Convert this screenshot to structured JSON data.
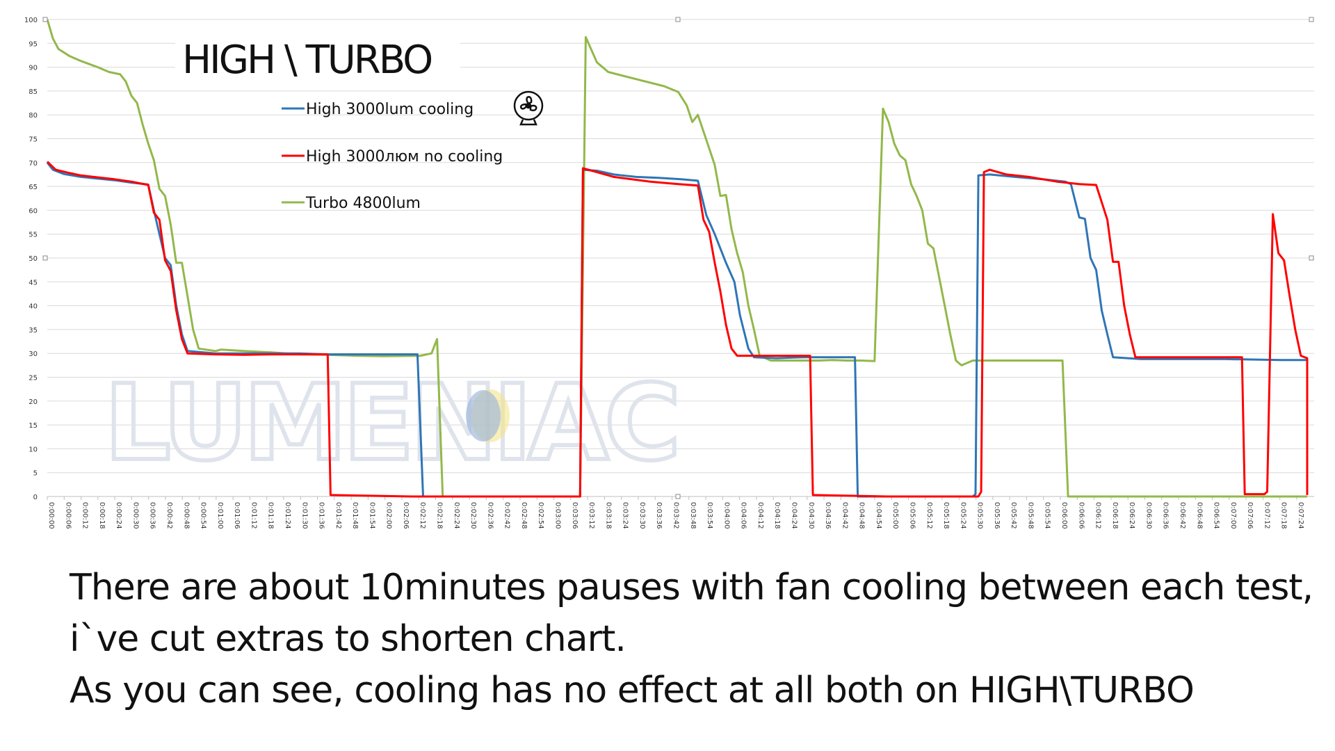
{
  "chart_data": {
    "type": "line",
    "title": "HIGH \\ TURBO",
    "ylim": [
      0,
      100
    ],
    "y_ticks": [
      0,
      5,
      10,
      15,
      20,
      25,
      30,
      35,
      40,
      45,
      50,
      55,
      60,
      65,
      70,
      75,
      80,
      85,
      90,
      95,
      100
    ],
    "x_tick_labels": [
      "0:00:00",
      "0:00:06",
      "0:00:12",
      "0:00:18",
      "0:00:24",
      "0:00:30",
      "0:00:36",
      "0:00:42",
      "0:00:48",
      "0:00:54",
      "0:01:00",
      "0:01:06",
      "0:01:12",
      "0:01:18",
      "0:01:24",
      "0:01:30",
      "0:01:36",
      "0:01:42",
      "0:01:48",
      "0:01:54",
      "0:02:00",
      "0:02:06",
      "0:02:12",
      "0:02:18",
      "0:02:24",
      "0:02:30",
      "0:02:36",
      "0:02:42",
      "0:02:48",
      "0:02:54",
      "0:03:00",
      "0:03:06",
      "0:03:12",
      "0:03:18",
      "0:03:24",
      "0:03:30",
      "0:03:36",
      "0:03:42",
      "0:03:48",
      "0:03:54",
      "0:04:00",
      "0:04:06",
      "0:04:12",
      "0:04:18",
      "0:04:24",
      "0:04:30",
      "0:04:36",
      "0:04:42",
      "0:04:48",
      "0:04:54",
      "0:05:00",
      "0:05:06",
      "0:05:12",
      "0:05:18",
      "0:05:24",
      "0:05:30",
      "0:05:36",
      "0:05:42",
      "0:05:48",
      "0:05:54",
      "0:06:00",
      "0:06:06",
      "0:06:12",
      "0:06:18",
      "0:06:24",
      "0:06:30",
      "0:06:36",
      "0:06:42",
      "0:06:48",
      "0:06:54",
      "0:07:00",
      "0:07:06",
      "0:07:12",
      "0:07:18",
      "0:07:24"
    ],
    "x_range_seconds": [
      0,
      450
    ],
    "grid": "horizontal",
    "legend_position": "top-left inside",
    "series": [
      {
        "name": "High 3000lum cooling",
        "color": "#2e75b6",
        "points": [
          [
            0,
            70
          ],
          [
            2,
            68.5
          ],
          [
            6,
            67.6
          ],
          [
            12,
            67
          ],
          [
            24,
            66.3
          ],
          [
            30,
            65.8
          ],
          [
            36,
            65.4
          ],
          [
            38,
            60
          ],
          [
            40,
            55
          ],
          [
            42,
            50
          ],
          [
            44,
            48.5
          ],
          [
            46,
            40
          ],
          [
            48,
            34
          ],
          [
            50,
            30.5
          ],
          [
            60,
            30
          ],
          [
            70,
            30
          ],
          [
            80,
            30
          ],
          [
            90,
            30
          ],
          [
            100,
            29.8
          ],
          [
            110,
            29.8
          ],
          [
            120,
            29.8
          ],
          [
            130,
            29.8
          ],
          [
            132,
            29.8
          ],
          [
            134,
            0
          ],
          [
            175,
            0
          ],
          [
            190,
            0
          ],
          [
            191,
            68.5
          ],
          [
            196,
            68.3
          ],
          [
            202,
            67.5
          ],
          [
            210,
            67
          ],
          [
            218,
            66.8
          ],
          [
            226,
            66.5
          ],
          [
            232,
            66.2
          ],
          [
            235,
            59
          ],
          [
            238,
            55
          ],
          [
            242,
            49
          ],
          [
            245,
            45
          ],
          [
            247,
            38
          ],
          [
            250,
            31
          ],
          [
            252,
            29.2
          ],
          [
            260,
            29
          ],
          [
            270,
            29.2
          ],
          [
            280,
            29.2
          ],
          [
            288,
            29.2
          ],
          [
            289,
            0
          ],
          [
            330,
            0
          ],
          [
            331,
            0.5
          ],
          [
            332,
            67.3
          ],
          [
            336,
            67.5
          ],
          [
            345,
            67
          ],
          [
            355,
            66.5
          ],
          [
            363,
            66
          ],
          [
            365,
            65.5
          ],
          [
            368,
            58.5
          ],
          [
            370,
            58.2
          ],
          [
            372,
            50
          ],
          [
            374,
            47.5
          ],
          [
            376,
            39
          ],
          [
            378,
            34
          ],
          [
            380,
            29.2
          ],
          [
            390,
            28.8
          ],
          [
            400,
            28.8
          ],
          [
            420,
            28.8
          ],
          [
            440,
            28.6
          ],
          [
            450,
            28.6
          ]
        ]
      },
      {
        "name": "High 3000люм no cooling",
        "color": "#ff0000",
        "points": [
          [
            0,
            70.2
          ],
          [
            3,
            68.5
          ],
          [
            8,
            67.8
          ],
          [
            12,
            67.3
          ],
          [
            24,
            66.5
          ],
          [
            30,
            66
          ],
          [
            36,
            65.3
          ],
          [
            38,
            59.5
          ],
          [
            40,
            58
          ],
          [
            42,
            49.5
          ],
          [
            44,
            47.3
          ],
          [
            46,
            39
          ],
          [
            48,
            33
          ],
          [
            50,
            30
          ],
          [
            60,
            29.8
          ],
          [
            70,
            29.7
          ],
          [
            80,
            29.8
          ],
          [
            90,
            29.8
          ],
          [
            100,
            29.8
          ],
          [
            101,
            0.3
          ],
          [
            130,
            0
          ],
          [
            175,
            0
          ],
          [
            190,
            0
          ],
          [
            191,
            68.8
          ],
          [
            196,
            68
          ],
          [
            202,
            67
          ],
          [
            215,
            66
          ],
          [
            225,
            65.5
          ],
          [
            232,
            65.2
          ],
          [
            234,
            58
          ],
          [
            236,
            55.5
          ],
          [
            238,
            49
          ],
          [
            240,
            43
          ],
          [
            242,
            36
          ],
          [
            244,
            31
          ],
          [
            246,
            29.5
          ],
          [
            255,
            29.5
          ],
          [
            265,
            29.5
          ],
          [
            272,
            29.5
          ],
          [
            273,
            0.3
          ],
          [
            300,
            0
          ],
          [
            320,
            0
          ],
          [
            332,
            0
          ],
          [
            333,
            1
          ],
          [
            334,
            68
          ],
          [
            336,
            68.5
          ],
          [
            342,
            67.5
          ],
          [
            350,
            67
          ],
          [
            360,
            66
          ],
          [
            368,
            65.5
          ],
          [
            374,
            65.3
          ],
          [
            378,
            58
          ],
          [
            380,
            49.2
          ],
          [
            382,
            49.2
          ],
          [
            384,
            40
          ],
          [
            386,
            34
          ],
          [
            388,
            29.2
          ],
          [
            400,
            29.2
          ],
          [
            420,
            29.2
          ],
          [
            426,
            29.2
          ],
          [
            427,
            0.5
          ],
          [
            432,
            0.5
          ],
          [
            434,
            0.5
          ],
          [
            435,
            1
          ],
          [
            437,
            59.2
          ],
          [
            439,
            51
          ],
          [
            441,
            49.5
          ],
          [
            443,
            42
          ],
          [
            445,
            35
          ],
          [
            447,
            29.5
          ],
          [
            450,
            29
          ],
          [
            455,
            28.8
          ],
          [
            460,
            28.6
          ],
          [
            462,
            28.8
          ],
          [
            463,
            0.3
          ],
          [
            470,
            0.3
          ]
        ]
      },
      {
        "name": "Turbo 4800lum",
        "color": "#92b84a",
        "points": [
          [
            0,
            100
          ],
          [
            2,
            96
          ],
          [
            4,
            93.8
          ],
          [
            8,
            92.3
          ],
          [
            12,
            91.3
          ],
          [
            18,
            90
          ],
          [
            22,
            89
          ],
          [
            26,
            88.5
          ],
          [
            28,
            87
          ],
          [
            30,
            84
          ],
          [
            32,
            82.5
          ],
          [
            34,
            78
          ],
          [
            36,
            74
          ],
          [
            38,
            70.5
          ],
          [
            40,
            64.5
          ],
          [
            42,
            63
          ],
          [
            44,
            57
          ],
          [
            46,
            49
          ],
          [
            48,
            49
          ],
          [
            50,
            42
          ],
          [
            52,
            35
          ],
          [
            54,
            31
          ],
          [
            60,
            30.5
          ],
          [
            62,
            30.8
          ],
          [
            70,
            30.5
          ],
          [
            80,
            30.2
          ],
          [
            90,
            29.8
          ],
          [
            100,
            29.7
          ],
          [
            110,
            29.5
          ],
          [
            120,
            29.4
          ],
          [
            133,
            29.5
          ],
          [
            137,
            30
          ],
          [
            139,
            33
          ],
          [
            141,
            0
          ],
          [
            175,
            0
          ],
          [
            190,
            0
          ],
          [
            192,
            96.3
          ],
          [
            196,
            91
          ],
          [
            200,
            89
          ],
          [
            210,
            87.5
          ],
          [
            220,
            86
          ],
          [
            225,
            84.8
          ],
          [
            228,
            82
          ],
          [
            230,
            78.5
          ],
          [
            232,
            80
          ],
          [
            234,
            76.5
          ],
          [
            236,
            73
          ],
          [
            238,
            69.5
          ],
          [
            240,
            63
          ],
          [
            242,
            63.2
          ],
          [
            244,
            56
          ],
          [
            246,
            51
          ],
          [
            248,
            47
          ],
          [
            250,
            40
          ],
          [
            252,
            35
          ],
          [
            254,
            29.5
          ],
          [
            258,
            28.5
          ],
          [
            262,
            28.5
          ],
          [
            266,
            28.5
          ],
          [
            270,
            28.5
          ],
          [
            275,
            28.5
          ],
          [
            280,
            28.6
          ],
          [
            285,
            28.5
          ],
          [
            290,
            28.5
          ],
          [
            295,
            28.4
          ],
          [
            298,
            81.3
          ],
          [
            300,
            78.5
          ],
          [
            302,
            74
          ],
          [
            304,
            71.5
          ],
          [
            306,
            70.5
          ],
          [
            308,
            65.5
          ],
          [
            310,
            63
          ],
          [
            312,
            60
          ],
          [
            314,
            53
          ],
          [
            316,
            52
          ],
          [
            318,
            46
          ],
          [
            320,
            40
          ],
          [
            322,
            34
          ],
          [
            324,
            28.5
          ],
          [
            326,
            27.5
          ],
          [
            330,
            28.5
          ],
          [
            340,
            28.5
          ],
          [
            350,
            28.5
          ],
          [
            358,
            28.5
          ],
          [
            362,
            28.5
          ],
          [
            364,
            0
          ],
          [
            400,
            0
          ],
          [
            450,
            0
          ],
          [
            470,
            0
          ]
        ]
      }
    ]
  },
  "watermark": {
    "text": "LUMENIAC",
    "color": "#dfe3ec"
  },
  "icons": {
    "legend_icon": "fan-icon"
  },
  "caption": {
    "line1": "There are about 10minutes pauses with fan cooling between each test,",
    "line2": "i`ve cut extras to shorten chart.",
    "line3": "As you can see, cooling has no effect at all both on HIGH\\TURBO"
  }
}
